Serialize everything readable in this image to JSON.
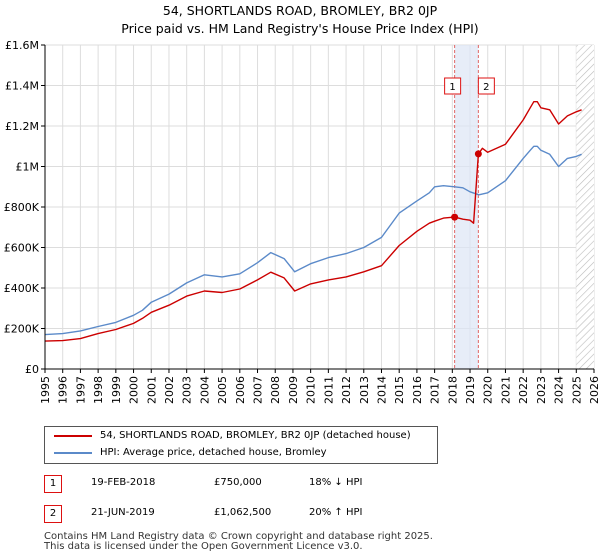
{
  "chart_data": {
    "type": "line",
    "title": "54, SHORTLANDS ROAD, BROMLEY, BR2 0JP",
    "subtitle": "Price paid vs. HM Land Registry's House Price Index (HPI)",
    "xlabel": "",
    "ylabel": "",
    "xlim": [
      1995,
      2026
    ],
    "ylim": [
      0,
      1600000
    ],
    "y_ticks": [
      {
        "value": 0,
        "label": "£0"
      },
      {
        "value": 200000,
        "label": "£200K"
      },
      {
        "value": 400000,
        "label": "£400K"
      },
      {
        "value": 600000,
        "label": "£600K"
      },
      {
        "value": 800000,
        "label": "£800K"
      },
      {
        "value": 1000000,
        "label": "£1M"
      },
      {
        "value": 1200000,
        "label": "£1.2M"
      },
      {
        "value": 1400000,
        "label": "£1.4M"
      },
      {
        "value": 1600000,
        "label": "£1.6M"
      }
    ],
    "x_ticks": [
      "1995",
      "1996",
      "1997",
      "1998",
      "1999",
      "2000",
      "2001",
      "2002",
      "2003",
      "2004",
      "2005",
      "2006",
      "2007",
      "2008",
      "2009",
      "2010",
      "2011",
      "2012",
      "2013",
      "2014",
      "2015",
      "2016",
      "2017",
      "2018",
      "2019",
      "2020",
      "2021",
      "2022",
      "2023",
      "2024",
      "2025",
      "2026"
    ],
    "grid": true,
    "series": [
      {
        "name": "54, SHORTLANDS ROAD, BROMLEY, BR2 0JP (detached house)",
        "color": "#cc0000",
        "x": [
          1995.0,
          1996.0,
          1997.0,
          1998.0,
          1999.0,
          2000.0,
          2000.5,
          2001.0,
          2002.0,
          2003.0,
          2004.0,
          2005.0,
          2006.0,
          2007.0,
          2007.75,
          2008.5,
          2009.1,
          2010.0,
          2011.0,
          2012.0,
          2013.0,
          2014.0,
          2015.0,
          2016.0,
          2016.7,
          2017.0,
          2017.5,
          2018.13,
          2018.6,
          2019.0,
          2019.2,
          2019.47,
          2019.7,
          2020.0,
          2021.0,
          2022.0,
          2022.4,
          2022.6,
          2022.8,
          2023.0,
          2023.5,
          2024.0,
          2024.5,
          2025.0,
          2025.3
        ],
        "y": [
          138000,
          140000,
          150000,
          175000,
          195000,
          225000,
          250000,
          280000,
          315000,
          360000,
          385000,
          378000,
          395000,
          440000,
          478000,
          450000,
          385000,
          420000,
          440000,
          455000,
          480000,
          510000,
          610000,
          680000,
          720000,
          730000,
          745000,
          750000,
          740000,
          735000,
          720000,
          1062500,
          1090000,
          1070000,
          1110000,
          1230000,
          1290000,
          1320000,
          1320000,
          1290000,
          1280000,
          1210000,
          1250000,
          1270000,
          1280000
        ]
      },
      {
        "name": "HPI: Average price, detached house, Bromley",
        "color": "#5b8ac9",
        "x": [
          1995.0,
          1996.0,
          1997.0,
          1998.0,
          1999.0,
          2000.0,
          2000.5,
          2001.0,
          2002.0,
          2003.0,
          2004.0,
          2005.0,
          2006.0,
          2007.0,
          2007.75,
          2008.5,
          2009.1,
          2010.0,
          2011.0,
          2012.0,
          2013.0,
          2014.0,
          2015.0,
          2016.0,
          2016.7,
          2017.0,
          2017.5,
          2018.13,
          2018.6,
          2019.0,
          2019.5,
          2020.0,
          2021.0,
          2022.0,
          2022.4,
          2022.6,
          2022.8,
          2023.0,
          2023.5,
          2024.0,
          2024.5,
          2025.0,
          2025.3
        ],
        "y": [
          170000,
          175000,
          188000,
          210000,
          230000,
          265000,
          290000,
          330000,
          370000,
          425000,
          465000,
          455000,
          470000,
          525000,
          575000,
          545000,
          480000,
          520000,
          550000,
          570000,
          600000,
          650000,
          770000,
          830000,
          870000,
          900000,
          905000,
          900000,
          895000,
          875000,
          860000,
          870000,
          930000,
          1040000,
          1080000,
          1100000,
          1100000,
          1080000,
          1060000,
          1000000,
          1040000,
          1050000,
          1060000
        ]
      }
    ],
    "sales": [
      {
        "label": "1",
        "x": 2018.13,
        "y": 750000,
        "date": "19-FEB-2018",
        "price": "£750,000",
        "delta": "18% ↓ HPI"
      },
      {
        "label": "2",
        "x": 2019.47,
        "y": 1062500,
        "date": "21-JUN-2019",
        "price": "£1,062,500",
        "delta": "20% ↑ HPI"
      }
    ],
    "hatched_from_x": 2025.0
  },
  "footer": {
    "line1": "Contains HM Land Registry data © Crown copyright and database right 2025.",
    "line2": "This data is licensed under the Open Government Licence v3.0."
  }
}
